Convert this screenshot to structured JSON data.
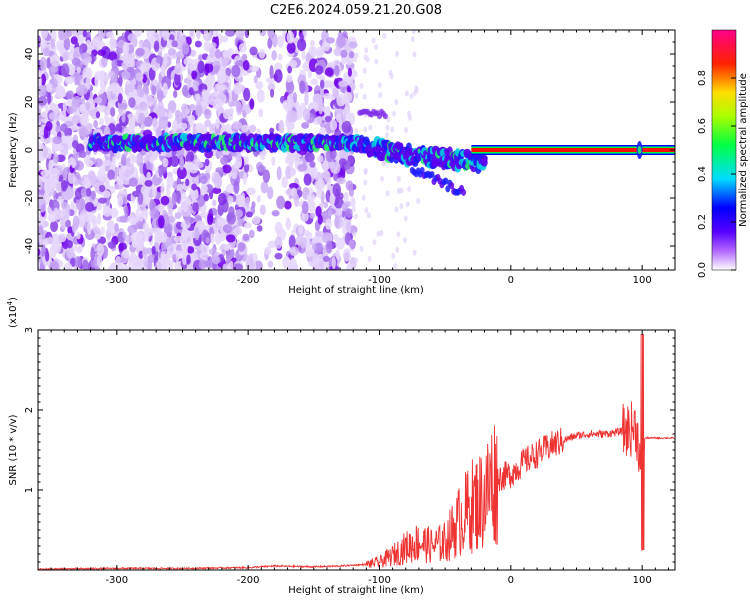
{
  "title": "C2E6.2024.059.21.20.G08",
  "colors": {
    "snr_line": "#ee3333",
    "spectral_line": "#ff0000",
    "axis": "#000000"
  },
  "chart_data": [
    {
      "type": "heatmap",
      "name": "spectrogram",
      "xlabel": "Height of straight line (km)",
      "ylabel": "Frequency (Hz)",
      "xlim": [
        -360,
        125
      ],
      "ylim": [
        -50,
        50
      ],
      "xticks": [
        -300,
        -200,
        -100,
        0,
        100
      ],
      "yticks": [
        -40,
        -20,
        0,
        20,
        40
      ],
      "grid": false,
      "colorbar": {
        "label": "Normalized spectral amplitude",
        "range": [
          0,
          1
        ],
        "ticks": [
          0.0,
          0.2,
          0.4,
          0.6,
          0.8
        ],
        "tick_labels": [
          "0.0",
          "0.2",
          "0.4",
          "0.6",
          "0.8"
        ],
        "colormap": "rainbow (white-violet-blue-cyan-green-yellow-red-magenta)"
      },
      "features": {
        "noise_region_x": [
          -360,
          -120
        ],
        "main_track_freq_hz": 2,
        "main_track_x": [
          -320,
          125
        ],
        "strong_tone_x": [
          -30,
          125
        ],
        "strong_tone_freq_hz": 0
      }
    },
    {
      "type": "line",
      "name": "snr",
      "xlabel": "Height of straight line (km)",
      "ylabel": "SNR (10 * v/v)",
      "y_scale_label": "(x10",
      "y_scale_exp": "4",
      "y_scale_close": ")",
      "xlim": [
        -360,
        125
      ],
      "ylim": [
        0,
        3
      ],
      "xticks": [
        -300,
        -200,
        -100,
        0,
        100
      ],
      "yticks": [
        1,
        2,
        3
      ],
      "grid": false,
      "x": [
        -360,
        -300,
        -250,
        -200,
        -180,
        -150,
        -130,
        -110,
        -100,
        -90,
        -80,
        -70,
        -60,
        -50,
        -40,
        -30,
        -20,
        -15,
        -10,
        0,
        10,
        20,
        30,
        40,
        50,
        60,
        70,
        80,
        90,
        95,
        98,
        100,
        102,
        110,
        125
      ],
      "y": [
        0.01,
        0.02,
        0.02,
        0.03,
        0.05,
        0.04,
        0.05,
        0.07,
        0.1,
        0.18,
        0.28,
        0.35,
        0.3,
        0.35,
        0.6,
        0.8,
        0.9,
        1.1,
        1.15,
        1.2,
        1.35,
        1.45,
        1.55,
        1.62,
        1.68,
        1.7,
        1.7,
        1.72,
        1.75,
        1.8,
        1.5,
        0.6,
        1.65,
        1.65,
        1.65
      ]
    }
  ]
}
